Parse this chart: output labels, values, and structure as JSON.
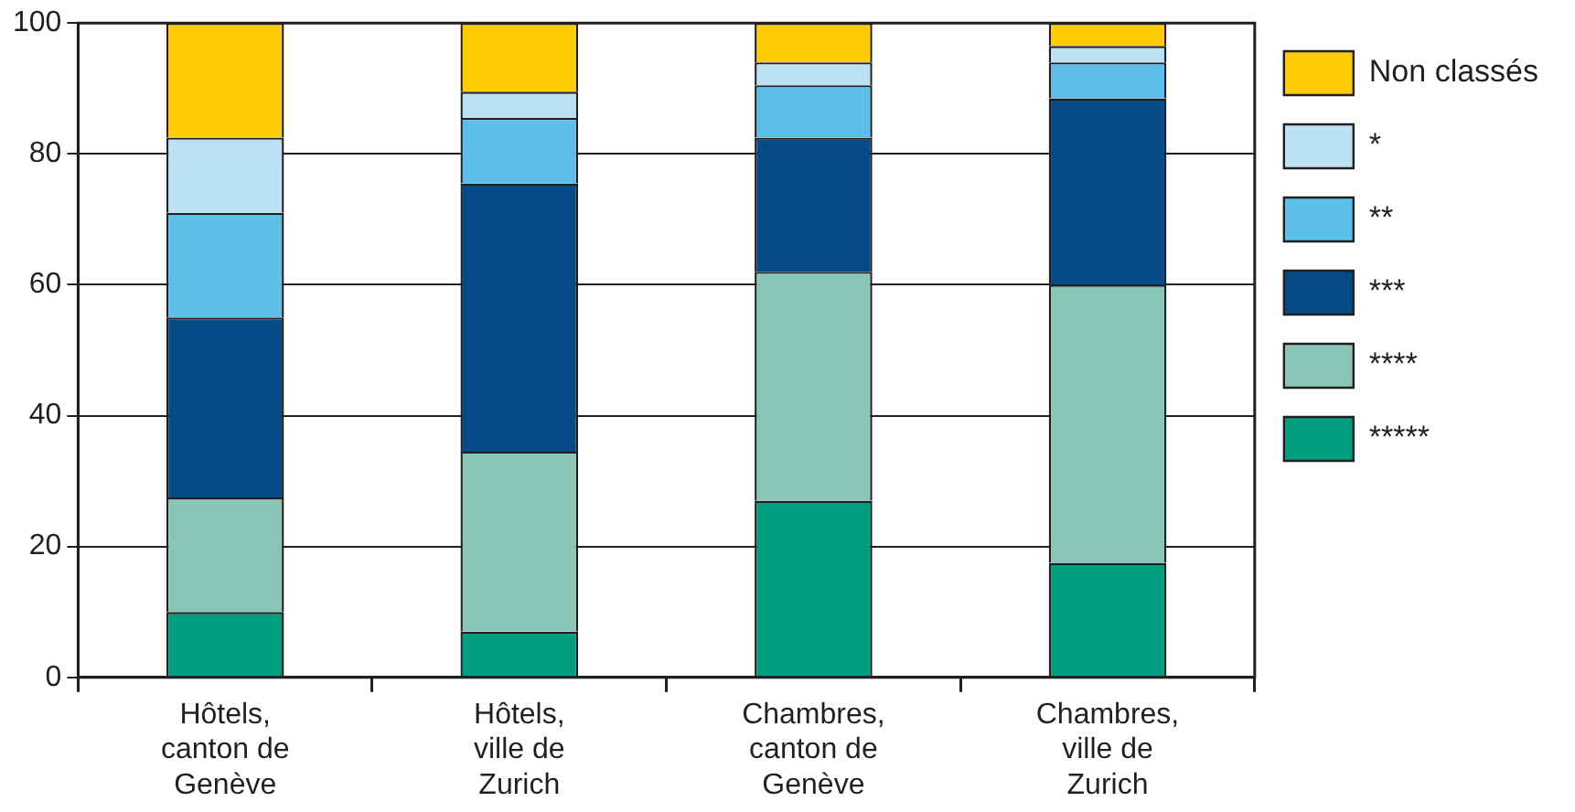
{
  "chart_data": {
    "type": "bar",
    "stacked": true,
    "categories": [
      "Hôtels,\ncanton de\nGenève",
      "Hôtels,\nville de\nZurich",
      "Chambres,\ncanton de\nGenève",
      "Chambres,\nville de\nZurich"
    ],
    "series": [
      {
        "name": "*****",
        "color": "#009d7f",
        "values": [
          10,
          7,
          27,
          17.5
        ]
      },
      {
        "name": "****",
        "color": "#89c6b8",
        "values": [
          17.5,
          27.5,
          35,
          42.5
        ]
      },
      {
        "name": "***",
        "color": "#034a86",
        "values": [
          27.5,
          41,
          20.5,
          28.5
        ]
      },
      {
        "name": "**",
        "color": "#5cbfea",
        "values": [
          16,
          10,
          8,
          5.5
        ]
      },
      {
        "name": "*",
        "color": "#bde1f4",
        "values": [
          11.5,
          4,
          3.5,
          2.5
        ]
      },
      {
        "name": "Non classés",
        "color": "#ffcb05",
        "values": [
          17.5,
          10.5,
          6,
          3.5
        ]
      }
    ],
    "ylim": [
      0,
      100
    ],
    "yticks": [
      0,
      20,
      40,
      60,
      80,
      100
    ],
    "grid": "y",
    "legend": "right"
  }
}
